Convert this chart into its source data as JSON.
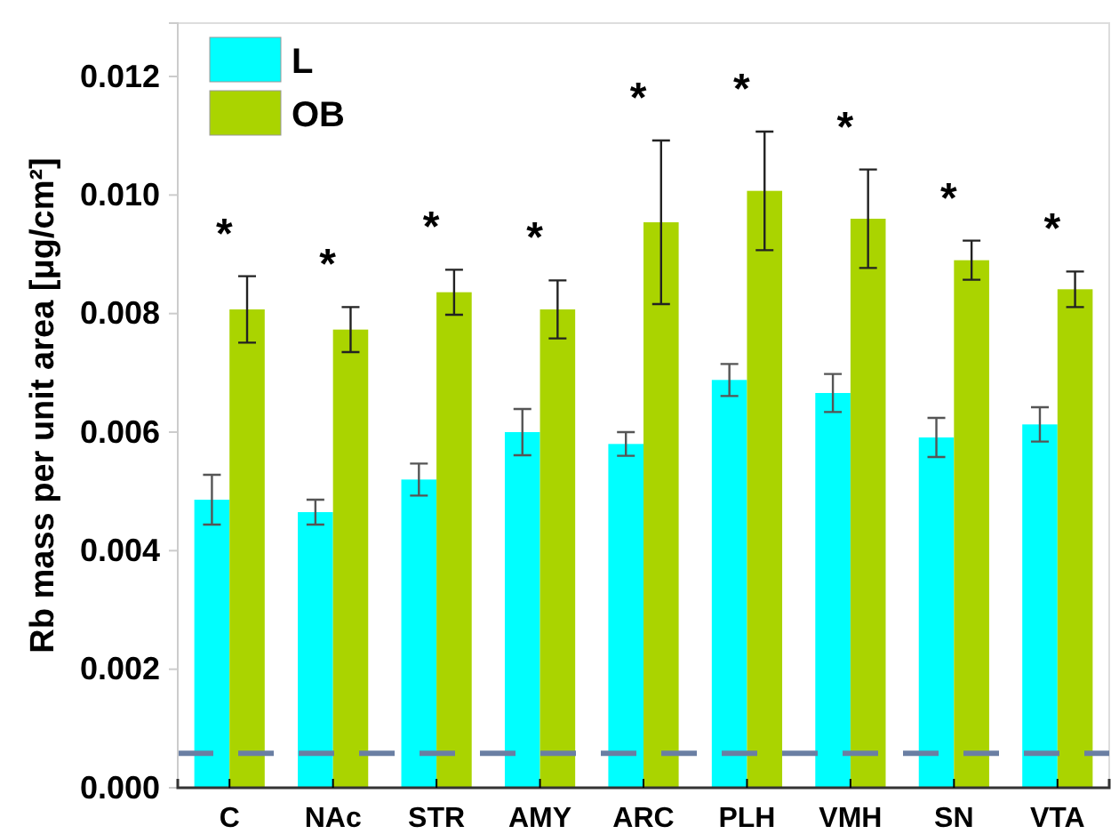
{
  "chart_data": {
    "type": "bar",
    "ylabel": "Rb mass per unit area [μg/cm²]",
    "categories": [
      "C",
      "NAc",
      "STR",
      "AMY",
      "ARC",
      "PLH",
      "VMH",
      "SN",
      "VTA"
    ],
    "series": [
      {
        "name": "L",
        "color": "#00ffff",
        "values": [
          0.00486,
          0.00465,
          0.0052,
          0.006,
          0.0058,
          0.00688,
          0.00666,
          0.00591,
          0.00613
        ],
        "errors": [
          0.00042,
          0.00021,
          0.00027,
          0.00039,
          0.0002,
          0.00027,
          0.00032,
          0.00033,
          0.00029
        ]
      },
      {
        "name": "OB",
        "color": "#aad400",
        "values": [
          0.00807,
          0.00773,
          0.00836,
          0.00807,
          0.00954,
          0.01007,
          0.0096,
          0.0089,
          0.00841
        ],
        "errors": [
          0.00056,
          0.00038,
          0.00038,
          0.00049,
          0.00138,
          0.001,
          0.00083,
          0.00033,
          0.0003
        ]
      }
    ],
    "ylim": [
      0,
      0.0129
    ],
    "yticks": [
      {
        "value": 0,
        "label": "0.000"
      },
      {
        "value": 0.002,
        "label": "0.002"
      },
      {
        "value": 0.004,
        "label": "0.004"
      },
      {
        "value": 0.006,
        "label": "0.006"
      },
      {
        "value": 0.008,
        "label": "0.008"
      },
      {
        "value": 0.01,
        "label": "0.010"
      },
      {
        "value": 0.012,
        "label": "0.012"
      }
    ],
    "ref_lines": [
      {
        "axis": "y",
        "value": 0.00058,
        "color": "#6a7fa3",
        "line_style": "dashed"
      }
    ],
    "annotations": [
      "*",
      "*",
      "*",
      "*",
      "*",
      "*",
      "*",
      "*",
      "*"
    ],
    "legend": "top left",
    "grid": false
  }
}
